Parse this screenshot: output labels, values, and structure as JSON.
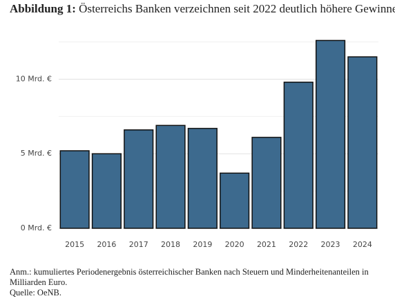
{
  "chart_data": {
    "type": "bar",
    "title_prefix": "Abbildung 1:",
    "title": "Österreichs Banken verzeichnen seit 2022 deutlich höhere Gewinne",
    "categories": [
      "2015",
      "2016",
      "2017",
      "2018",
      "2019",
      "2020",
      "2021",
      "2022",
      "2023",
      "2024"
    ],
    "values": [
      5.2,
      5.0,
      6.6,
      6.9,
      6.7,
      3.7,
      6.1,
      9.8,
      12.6,
      11.5
    ],
    "color": "#3d6a8e",
    "ylim": [
      0,
      12.9
    ],
    "yticks": [
      {
        "value": 0,
        "label": "0 Mrd. €"
      },
      {
        "value": 5,
        "label": "5 Mrd. €"
      },
      {
        "value": 10,
        "label": "10 Mrd. €"
      }
    ],
    "minor_yticks": [
      2.5,
      7.5,
      12.5
    ],
    "grid": true,
    "note": "Anm.: kumuliertes Periodenergebnis österreichischer Banken nach Steuern und Minderheitenanteilen in Milliarden Euro.",
    "source": "Quelle: OeNB."
  }
}
